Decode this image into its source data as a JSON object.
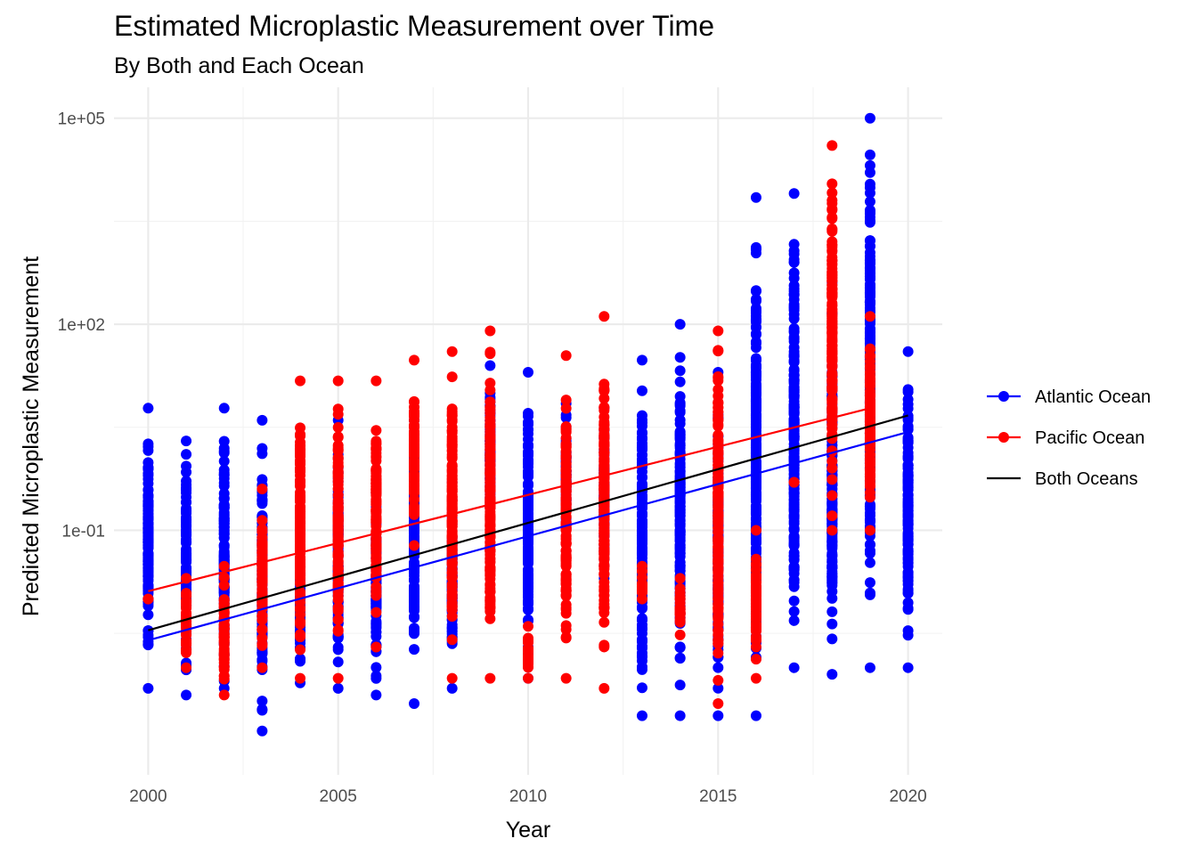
{
  "chart_data": {
    "type": "scatter",
    "title": "Estimated Microplastic Measurement over Time",
    "subtitle": "By Both and Each Ocean",
    "xlabel": "Year",
    "ylabel": "Predicted Microplastic Measurement",
    "xlim": [
      1999.1,
      2020.9
    ],
    "ylim_log10": [
      -4.56,
      5.45
    ],
    "y_scale": "log10",
    "x_ticks": [
      2000,
      2005,
      2010,
      2015,
      2020
    ],
    "x_tick_labels": [
      "2000",
      "2005",
      "2010",
      "2015",
      "2020"
    ],
    "y_ticks": [
      0.1,
      100,
      100000
    ],
    "y_tick_labels": [
      "1e-01",
      "1e+02",
      "1e+05"
    ],
    "grid": true,
    "legend_position": "right",
    "legend": [
      {
        "label": "Atlantic Ocean",
        "color": "#0000ff",
        "marker": "point-line"
      },
      {
        "label": "Pacific Ocean",
        "color": "#ff0000",
        "marker": "point-line"
      },
      {
        "label": "Both Oceans",
        "color": "#000000",
        "marker": "line"
      }
    ],
    "series": [
      {
        "name": "Atlantic Ocean",
        "color": "#0000ff",
        "columns": [
          {
            "x": 2000,
            "min": 0.0005,
            "max": 6.0
          },
          {
            "x": 2001,
            "min": 0.0004,
            "max": 2.0
          },
          {
            "x": 2002,
            "min": 0.0005,
            "max": 6.0
          },
          {
            "x": 2003,
            "min": 0.00012,
            "max": 4.0
          },
          {
            "x": 2004,
            "min": 0.0006,
            "max": 0.09
          },
          {
            "x": 2005,
            "min": 0.0005,
            "max": 4.0
          },
          {
            "x": 2006,
            "min": 0.0004,
            "max": 0.35
          },
          {
            "x": 2007,
            "min": 0.0003,
            "max": 4.0
          },
          {
            "x": 2008,
            "min": 0.0005,
            "max": 0.5
          },
          {
            "x": 2009,
            "min": 0.08,
            "max": 25.0
          },
          {
            "x": 2010,
            "min": 0.0007,
            "max": 20.0
          },
          {
            "x": 2011,
            "min": 0.05,
            "max": 7.0
          },
          {
            "x": 2012,
            "min": 0.02,
            "max": 6.0
          },
          {
            "x": 2013,
            "min": 0.0002,
            "max": 30.0
          },
          {
            "x": 2014,
            "min": 0.0002,
            "max": 100.0
          },
          {
            "x": 2015,
            "min": 0.0002,
            "max": 20.0
          },
          {
            "x": 2016,
            "min": 0.0002,
            "max": 7000.0
          },
          {
            "x": 2017,
            "min": 0.001,
            "max": 8000.0
          },
          {
            "x": 2018,
            "min": 0.0008,
            "max": 400.0
          },
          {
            "x": 2019,
            "min": 0.001,
            "max": 100000.0
          },
          {
            "x": 2020,
            "min": 0.001,
            "max": 40.0
          }
        ],
        "trend": [
          {
            "x": 2000,
            "y": 0.0025
          },
          {
            "x": 2020,
            "y": 2.7
          }
        ]
      },
      {
        "name": "Pacific Ocean",
        "color": "#ff0000",
        "columns": [
          {
            "x": 2000,
            "min": 0.01,
            "max": 0.01
          },
          {
            "x": 2001,
            "min": 0.001,
            "max": 0.02
          },
          {
            "x": 2002,
            "min": 0.0004,
            "max": 0.03
          },
          {
            "x": 2003,
            "min": 0.001,
            "max": 0.4
          },
          {
            "x": 2004,
            "min": 0.0007,
            "max": 15.0
          },
          {
            "x": 2005,
            "min": 0.0007,
            "max": 15.0
          },
          {
            "x": 2006,
            "min": 0.002,
            "max": 15.0
          },
          {
            "x": 2007,
            "min": 0.06,
            "max": 30.0
          },
          {
            "x": 2008,
            "min": 0.0007,
            "max": 40.0
          },
          {
            "x": 2009,
            "min": 0.0007,
            "max": 80.0
          },
          {
            "x": 2010,
            "min": 0.0007,
            "max": 0.004
          },
          {
            "x": 2011,
            "min": 0.0007,
            "max": 35.0
          },
          {
            "x": 2012,
            "min": 0.0005,
            "max": 130.0
          },
          {
            "x": 2013,
            "min": 0.01,
            "max": 0.03
          },
          {
            "x": 2014,
            "min": 0.003,
            "max": 0.02
          },
          {
            "x": 2015,
            "min": 0.0003,
            "max": 80.0
          },
          {
            "x": 2016,
            "min": 0.0007,
            "max": 0.1
          },
          {
            "x": 2017,
            "min": 0.5,
            "max": 0.5
          },
          {
            "x": 2018,
            "min": 0.1,
            "max": 40000.0
          },
          {
            "x": 2019,
            "min": 0.1,
            "max": 130.0
          }
        ],
        "trend": [
          {
            "x": 2000,
            "y": 0.013
          },
          {
            "x": 2019,
            "y": 6.0
          }
        ]
      },
      {
        "name": "Both Oceans",
        "color": "#000000",
        "trend": [
          {
            "x": 2000,
            "y": 0.0035
          },
          {
            "x": 2020,
            "y": 4.7
          }
        ]
      }
    ]
  }
}
